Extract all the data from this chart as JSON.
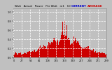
{
  "title": "Watt   Actual   Power   Per Watt   m1   10",
  "bg_color": "#c0c0c0",
  "plot_bg_color": "#c0c0c0",
  "bar_color": "#cc0000",
  "avg_line_color": "#cc0000",
  "grid_color": "#ffffff",
  "text_color": "#000000",
  "legend_actual_color": "#0000cc",
  "legend_avg_color": "#cc0000",
  "legend_actual_label": "CURRENT",
  "legend_avg_label": "AVERAGE",
  "figsize": [
    1.6,
    1.0
  ],
  "dpi": 100,
  "num_points": 300,
  "seed": 17
}
